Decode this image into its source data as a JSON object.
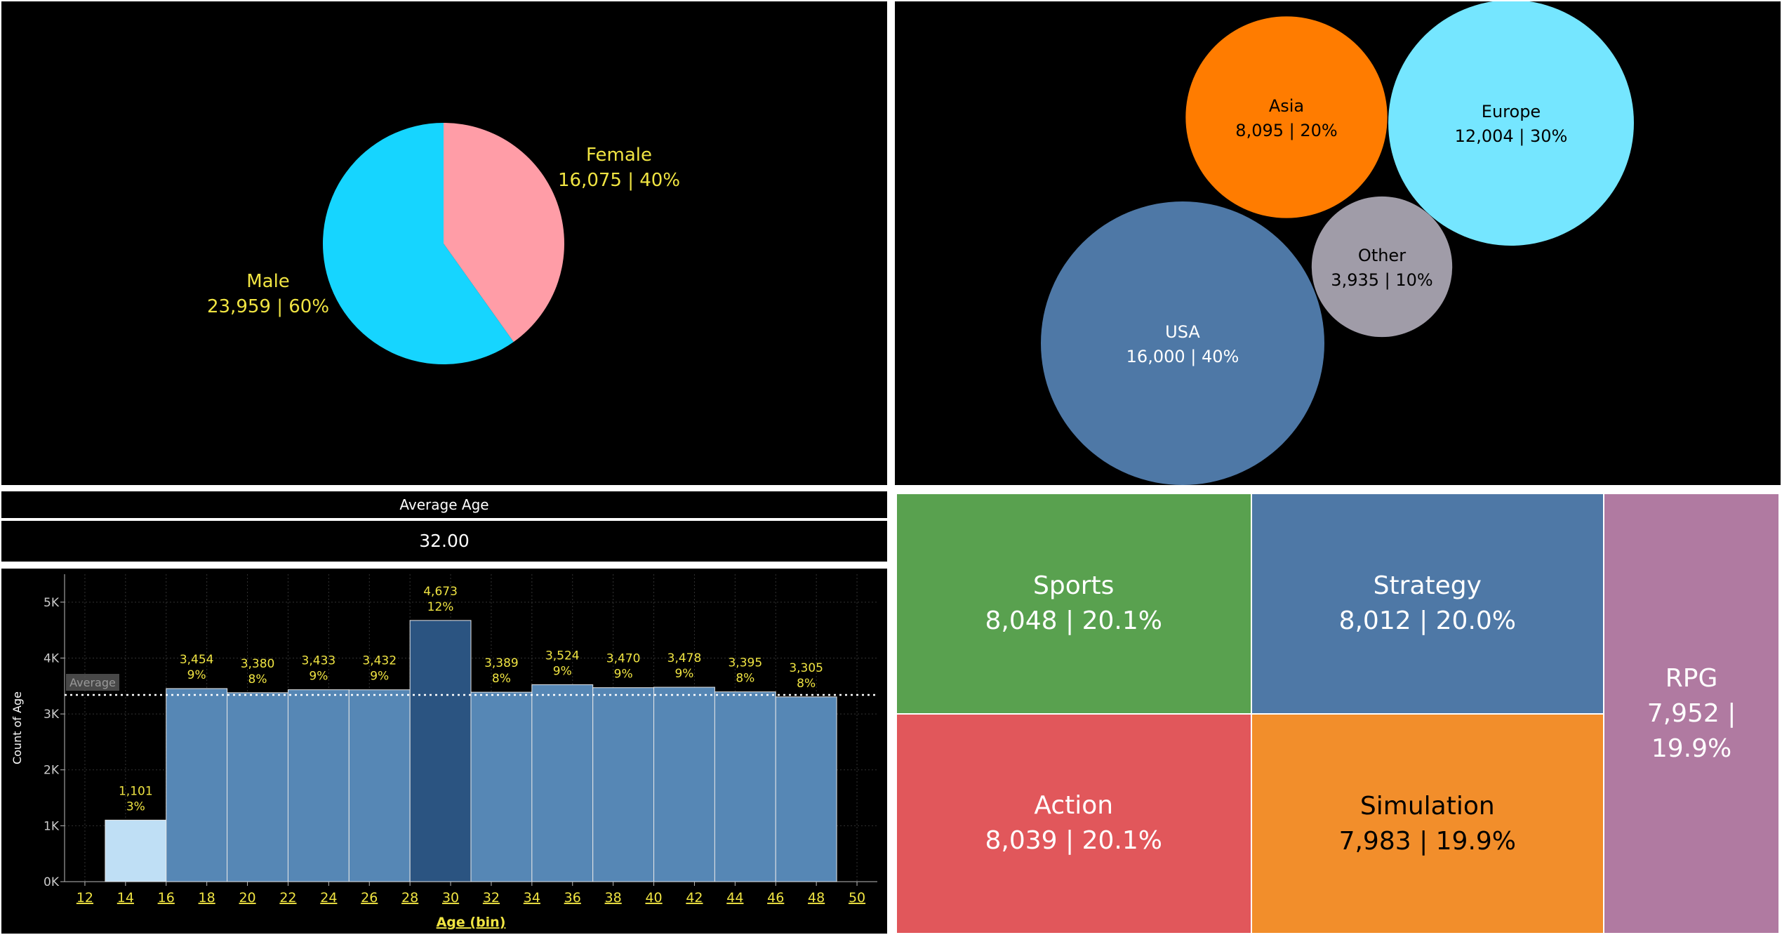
{
  "colors": {
    "panel_bg": "#000000",
    "label_yellow": "#f0e442",
    "divider": "#ffffff"
  },
  "average_age": {
    "label": "Average Age",
    "value": "32.00"
  },
  "chart_data": [
    {
      "type": "pie",
      "title": "",
      "slices": [
        {
          "name": "Female",
          "value": 16075,
          "value_label": "16,075",
          "percent_label": "40%",
          "color": "#ff9da7"
        },
        {
          "name": "Male",
          "value": 23959,
          "value_label": "23,959",
          "percent_label": "60%",
          "color": "#16d5ff"
        }
      ]
    },
    {
      "type": "bubble",
      "title": "",
      "items": [
        {
          "name": "Asia",
          "value": 8095,
          "value_label": "8,095",
          "percent_label": "20%",
          "color": "#ff7c00",
          "text_color": "#000000"
        },
        {
          "name": "Europe",
          "value": 12004,
          "value_label": "12,004",
          "percent_label": "30%",
          "color": "#75e6ff",
          "text_color": "#000000"
        },
        {
          "name": "Other",
          "value": 3935,
          "value_label": "3,935",
          "percent_label": "10%",
          "color": "#a09ca8",
          "text_color": "#000000"
        },
        {
          "name": "USA",
          "value": 16000,
          "value_label": "16,000",
          "percent_label": "40%",
          "color": "#4e78a6",
          "text_color": "#ffffff"
        }
      ]
    },
    {
      "type": "bar",
      "title": "",
      "xlabel": "Age (bin)",
      "ylabel": "Count of Age",
      "ylim": [
        0,
        5500
      ],
      "xlim": [
        11,
        51
      ],
      "y_ticks": [
        {
          "value": 0,
          "label": "0K"
        },
        {
          "value": 1000,
          "label": "1K"
        },
        {
          "value": 2000,
          "label": "2K"
        },
        {
          "value": 3000,
          "label": "3K"
        },
        {
          "value": 4000,
          "label": "4K"
        },
        {
          "value": 5000,
          "label": "5K"
        }
      ],
      "x_ticks": [
        "12",
        "14",
        "16",
        "18",
        "20",
        "22",
        "24",
        "26",
        "28",
        "30",
        "32",
        "34",
        "36",
        "38",
        "40",
        "42",
        "44",
        "46",
        "48",
        "50"
      ],
      "average_line": {
        "value": 3340,
        "label": "Average"
      },
      "bins": [
        {
          "start": 13,
          "end": 16,
          "value": 1101,
          "value_label": "1,101",
          "percent_label": "3%",
          "color": "#bfdff5"
        },
        {
          "start": 16,
          "end": 19,
          "value": 3454,
          "value_label": "3,454",
          "percent_label": "9%",
          "color": "#5687b5"
        },
        {
          "start": 19,
          "end": 22,
          "value": 3380,
          "value_label": "3,380",
          "percent_label": "8%",
          "color": "#5687b5"
        },
        {
          "start": 22,
          "end": 25,
          "value": 3433,
          "value_label": "3,433",
          "percent_label": "9%",
          "color": "#5687b5"
        },
        {
          "start": 25,
          "end": 28,
          "value": 3432,
          "value_label": "3,432",
          "percent_label": "9%",
          "color": "#5687b5"
        },
        {
          "start": 28,
          "end": 31,
          "value": 4673,
          "value_label": "4,673",
          "percent_label": "12%",
          "color": "#2b5481"
        },
        {
          "start": 31,
          "end": 34,
          "value": 3389,
          "value_label": "3,389",
          "percent_label": "8%",
          "color": "#5687b5"
        },
        {
          "start": 34,
          "end": 37,
          "value": 3524,
          "value_label": "3,524",
          "percent_label": "9%",
          "color": "#5687b5"
        },
        {
          "start": 37,
          "end": 40,
          "value": 3470,
          "value_label": "3,470",
          "percent_label": "9%",
          "color": "#5687b5"
        },
        {
          "start": 40,
          "end": 43,
          "value": 3478,
          "value_label": "3,478",
          "percent_label": "9%",
          "color": "#5687b5"
        },
        {
          "start": 43,
          "end": 46,
          "value": 3395,
          "value_label": "3,395",
          "percent_label": "8%",
          "color": "#5687b5"
        },
        {
          "start": 46,
          "end": 49,
          "value": 3305,
          "value_label": "3,305",
          "percent_label": "8%",
          "color": "#5687b5"
        }
      ]
    },
    {
      "type": "treemap",
      "title": "",
      "items": [
        {
          "name": "Sports",
          "value": 8048,
          "value_label": "8,048",
          "percent_label": "20.1%",
          "color": "#59a14f",
          "text_color": "#ffffff"
        },
        {
          "name": "Strategy",
          "value": 8012,
          "value_label": "8,012",
          "percent_label": "20.0%",
          "color": "#4e78a6",
          "text_color": "#ffffff"
        },
        {
          "name": "Action",
          "value": 8039,
          "value_label": "8,039",
          "percent_label": "20.1%",
          "color": "#e1575b",
          "text_color": "#ffffff"
        },
        {
          "name": "Simulation",
          "value": 7983,
          "value_label": "7,983",
          "percent_label": "19.9%",
          "color": "#f28e2b",
          "text_color": "#000000"
        },
        {
          "name": "RPG",
          "value": 7952,
          "value_label": "7,952",
          "percent_label": "19.9%",
          "color": "#b07aa1",
          "text_color": "#ffffff"
        }
      ]
    }
  ]
}
